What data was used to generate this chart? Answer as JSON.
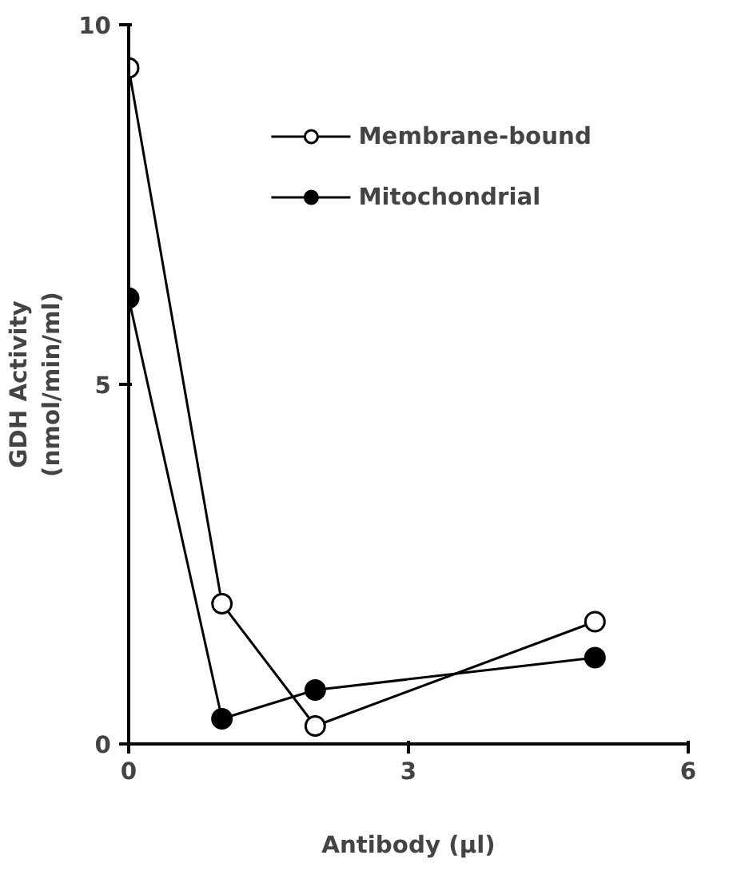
{
  "chart_data": {
    "type": "line",
    "xlabel": "Antibody (µl)",
    "ylabel": "GDH Activity\n(nmol/min/ml)",
    "x": [
      0,
      1,
      2,
      5
    ],
    "series": [
      {
        "name": "Membrane-bound",
        "color": "#000000",
        "marker": "circle_open",
        "values": [
          9.4,
          1.95,
          0.25,
          1.7
        ]
      },
      {
        "name": "Mitochondrial",
        "color": "#000000",
        "marker": "circle",
        "values": [
          6.2,
          0.35,
          0.75,
          1.2
        ]
      }
    ],
    "xlim": [
      0,
      6
    ],
    "ylim": [
      0,
      10
    ],
    "xticks": [
      0,
      3,
      6
    ],
    "yticks": [
      0,
      5,
      10
    ],
    "grid": false,
    "legend": "top right",
    "line_style": "solid"
  }
}
